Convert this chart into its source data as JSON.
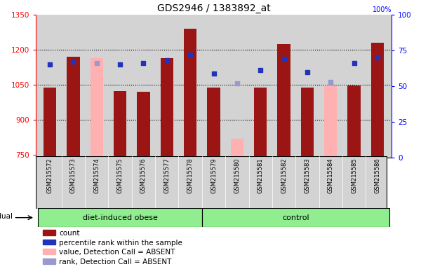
{
  "title": "GDS2946 / 1383892_at",
  "samples": [
    "GSM215572",
    "GSM215573",
    "GSM215574",
    "GSM215575",
    "GSM215576",
    "GSM215577",
    "GSM215578",
    "GSM215579",
    "GSM215580",
    "GSM215581",
    "GSM215582",
    "GSM215583",
    "GSM215584",
    "GSM215585",
    "GSM215586"
  ],
  "count_values": [
    1040,
    1170,
    null,
    1025,
    1020,
    1165,
    1290,
    1040,
    null,
    1040,
    1225,
    1040,
    null,
    1048,
    1230
  ],
  "absent_values": [
    null,
    null,
    1165,
    null,
    null,
    null,
    null,
    null,
    820,
    null,
    null,
    null,
    1045,
    null,
    null
  ],
  "percentile_ranks": [
    65,
    67,
    null,
    65,
    66,
    68,
    72,
    59,
    null,
    61,
    69,
    60,
    null,
    66,
    70
  ],
  "absent_ranks": [
    null,
    null,
    66,
    null,
    null,
    null,
    null,
    null,
    52,
    null,
    null,
    null,
    53,
    null,
    null
  ],
  "ylim_left": [
    740,
    1350
  ],
  "ylim_right": [
    0,
    100
  ],
  "yticks_left": [
    750,
    900,
    1050,
    1200,
    1350
  ],
  "yticks_right": [
    0,
    25,
    50,
    75,
    100
  ],
  "bar_color": "#9b1515",
  "absent_bar_color": "#ffb0b0",
  "dot_color": "#2233bb",
  "absent_dot_color": "#9999cc",
  "plot_bg": "#d3d3d3",
  "group_color": "#90ee90",
  "grid_lines": [
    900,
    1050,
    1200
  ],
  "group_defs": [
    {
      "label": "diet-induced obese",
      "start": 0,
      "end": 6
    },
    {
      "label": "control",
      "start": 7,
      "end": 14
    }
  ],
  "legend_items": [
    {
      "label": "count",
      "color": "#9b1515"
    },
    {
      "label": "percentile rank within the sample",
      "color": "#2233bb"
    },
    {
      "label": "value, Detection Call = ABSENT",
      "color": "#ffb0b0"
    },
    {
      "label": "rank, Detection Call = ABSENT",
      "color": "#9999cc"
    }
  ],
  "bar_width": 0.55,
  "dot_size": 22
}
